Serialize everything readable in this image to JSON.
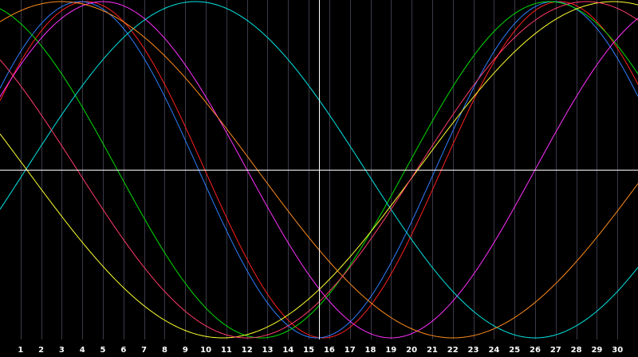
{
  "chart_data": {
    "type": "line",
    "xlabel": "",
    "ylabel": "",
    "xlim": [
      0,
      31
    ],
    "ylim": [
      -1,
      1
    ],
    "x_ticks": [
      "1",
      "2",
      "3",
      "4",
      "5",
      "6",
      "7",
      "8",
      "9",
      "10",
      "11",
      "12",
      "13",
      "14",
      "15",
      "16",
      "17",
      "18",
      "19",
      "20",
      "21",
      "22",
      "23",
      "24",
      "25",
      "26",
      "27",
      "28",
      "29",
      "30"
    ],
    "current_day": 16,
    "grid": "vertical-day-lines",
    "colors": {
      "background": "#000000",
      "grid": "#3a3a4a",
      "axis": "#ffffff",
      "tick_label": "#ffffff"
    },
    "series": [
      {
        "color": "#ff2020",
        "amplitude": 1,
        "period": 23,
        "peak_day": 27.2
      },
      {
        "color": "#2f7dff",
        "amplitude": 1,
        "period": 23,
        "peak_day": 26.9
      },
      {
        "color": "#00dd00",
        "amplitude": 1,
        "period": 28,
        "peak_day": 26.7
      },
      {
        "color": "#ff30ff",
        "amplitude": 1,
        "period": 28,
        "peak_day": 33.0
      },
      {
        "color": "#00e5e5",
        "amplitude": 1,
        "period": 33,
        "peak_day": 9.5
      },
      {
        "color": "#ffff30",
        "amplitude": 1,
        "period": 38,
        "peak_day": 29.8
      },
      {
        "color": "#ff8c1a",
        "amplitude": 1,
        "period": 38,
        "peak_day": 41.0
      },
      {
        "color": "#ff3b6b",
        "amplitude": 1,
        "period": 33,
        "peak_day": 28.5
      }
    ]
  }
}
